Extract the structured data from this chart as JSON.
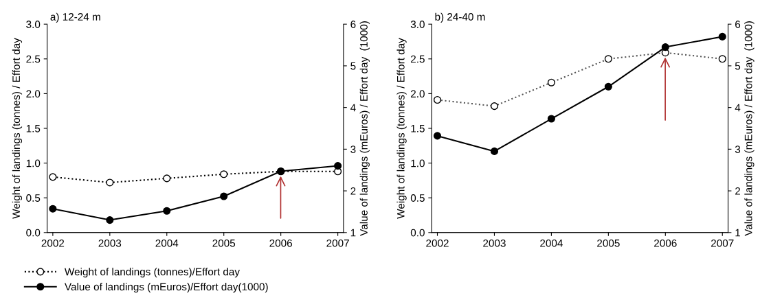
{
  "chart_data": [
    {
      "type": "line",
      "title": "a) 12-24 m",
      "ylabel": "Weight of landings (tonnes) / Effort day",
      "y2label": "Value of landings (mEuros) / Effort day  (1000)",
      "x": [
        2002,
        2003,
        2004,
        2005,
        2006,
        2007
      ],
      "xlim": [
        2001.9,
        2007.1
      ],
      "xticks": [
        2002,
        2003,
        2004,
        2005,
        2006,
        2007
      ],
      "ylim": [
        0,
        3
      ],
      "yticks": [
        {
          "value": 0,
          "label": "0.0"
        },
        0.5,
        {
          "value": 1,
          "label": "1.0"
        },
        1.5,
        {
          "value": 2,
          "label": "2.0"
        },
        2.5,
        {
          "value": 3,
          "label": "3.0"
        }
      ],
      "y2lim": [
        1,
        6
      ],
      "y2ticks": [
        1,
        2,
        3,
        4,
        5,
        6
      ],
      "marker": "circle",
      "grid": false,
      "legend": "bottom left",
      "series": [
        {
          "name": "Weight of landings (tonnes)/Effort day",
          "color": "#000000",
          "line_style": "dotted",
          "values": [
            0.8,
            0.72,
            0.78,
            0.84,
            0.88,
            0.88
          ]
        },
        {
          "name": "Value of landings (mEuros)/Effort day(1000)",
          "color": "#000000",
          "line_style": "solid",
          "axis": "y2",
          "values": [
            1.57,
            1.3,
            1.52,
            1.87,
            2.47,
            2.6
          ]
        }
      ]
    },
    {
      "type": "line",
      "title": "b) 24-40 m",
      "ylabel": "Weight of landings (tonnes) / Effort day",
      "y2label": "Value of landings (mEuros) / Effort day  (1000)",
      "x": [
        2002,
        2003,
        2004,
        2005,
        2006,
        2007
      ],
      "xlim": [
        2001.9,
        2007.1
      ],
      "xticks": [
        2002,
        2003,
        2004,
        2005,
        2006,
        2007
      ],
      "ylim": [
        0,
        3
      ],
      "yticks": [
        {
          "value": 0,
          "label": "0.0"
        },
        0.5,
        {
          "value": 1,
          "label": "1.0"
        },
        1.5,
        {
          "value": 2,
          "label": "2.0"
        },
        2.5,
        {
          "value": 3,
          "label": "3.0"
        }
      ],
      "y2lim": [
        1,
        6
      ],
      "y2ticks": [
        1,
        2,
        3,
        4,
        5,
        6
      ],
      "marker": "circle",
      "grid": false,
      "series": [
        {
          "color": "#555555",
          "line_style": "dotted",
          "values": [
            1.91,
            1.82,
            2.16,
            2.5,
            2.59,
            2.5
          ]
        },
        {
          "color": "#000000",
          "line_style": "solid",
          "axis": "y2",
          "values": [
            3.32,
            2.95,
            3.73,
            4.5,
            5.45,
            5.7
          ]
        }
      ]
    }
  ]
}
